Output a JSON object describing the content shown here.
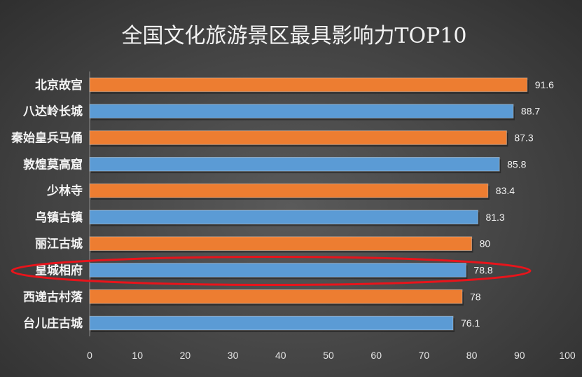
{
  "chart_data": {
    "type": "bar",
    "orientation": "horizontal",
    "title": "全国文化旅游景区最具影响力TOP10",
    "categories": [
      "北京故宫",
      "八达岭长城",
      "秦始皇兵马俑",
      "敦煌莫高窟",
      "少林寺",
      "乌镇古镇",
      "丽江古城",
      "皇城相府",
      "西递古村落",
      "台儿庄古城"
    ],
    "values": [
      91.6,
      88.7,
      87.3,
      85.8,
      83.4,
      81.3,
      80,
      78.8,
      78,
      76.1
    ],
    "value_labels": [
      "91.6",
      "88.7",
      "87.3",
      "85.8",
      "83.4",
      "81.3",
      "80",
      "78.8",
      "78",
      "76.1"
    ],
    "bar_colors": [
      "#ED7D31",
      "#5B9BD5",
      "#ED7D31",
      "#5B9BD5",
      "#ED7D31",
      "#5B9BD5",
      "#ED7D31",
      "#5B9BD5",
      "#ED7D31",
      "#5B9BD5"
    ],
    "xlim": [
      0,
      100
    ],
    "xticks": [
      "0",
      "10",
      "20",
      "30",
      "40",
      "50",
      "60",
      "70",
      "80",
      "90",
      "100"
    ],
    "grid": false,
    "highlight": {
      "category": "皇城相府",
      "shape": "ellipse",
      "color": "#E8141B"
    }
  },
  "colors": {
    "background": "#454545",
    "text": "#F2F2F2",
    "axis": "#8C8C8C"
  }
}
